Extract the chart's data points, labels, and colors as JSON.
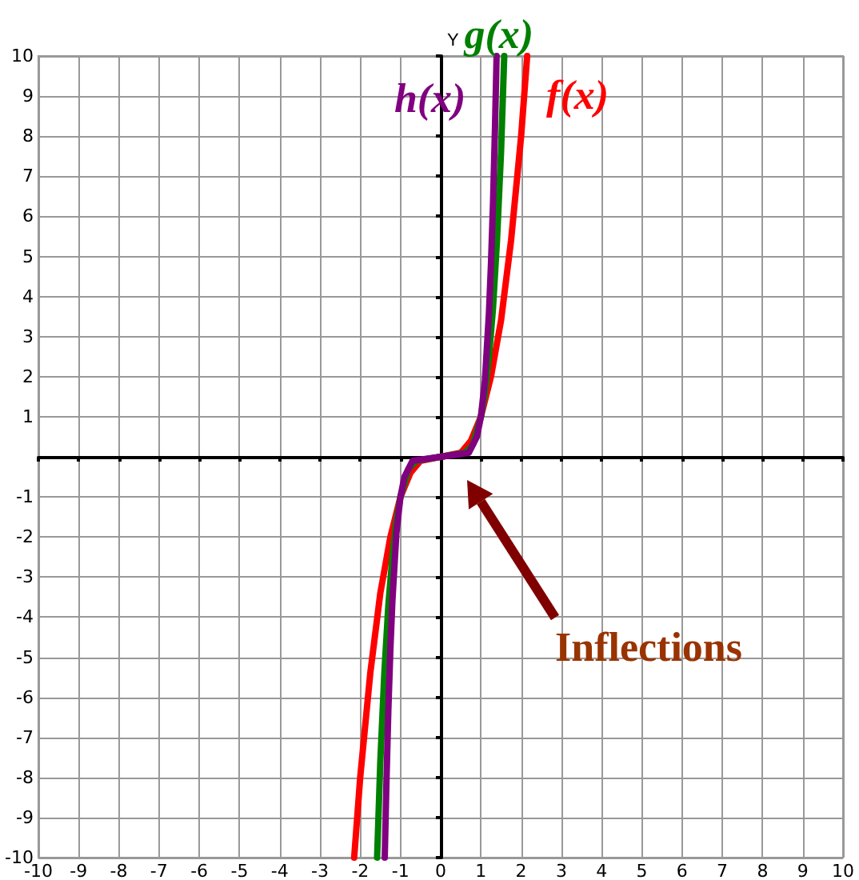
{
  "chart_data": {
    "type": "line",
    "ylabel": "Y",
    "xlim": [
      -10,
      10
    ],
    "ylim": [
      -10,
      10
    ],
    "xticks": [
      -10,
      -9,
      -8,
      -7,
      -6,
      -5,
      -4,
      -3,
      -2,
      -1,
      0,
      1,
      2,
      3,
      4,
      5,
      6,
      7,
      8,
      9,
      10
    ],
    "yticks": [
      -10,
      -9,
      -8,
      -7,
      -6,
      -5,
      -4,
      -3,
      -2,
      -1,
      {
        "value": 0,
        "label": null
      },
      1,
      2,
      3,
      4,
      5,
      6,
      7,
      8,
      9,
      10
    ],
    "grid": true,
    "legend": false,
    "marker": "none",
    "line_style": "solid",
    "series": [
      {
        "name": "f(x)",
        "color": "#ff0000",
        "x": [
          -2.15,
          -2,
          -1.75,
          -1.5,
          -1.25,
          -1,
          -0.75,
          -0.5,
          0,
          0.5,
          0.75,
          1,
          1.25,
          1.5,
          1.75,
          2,
          2.15
        ],
        "values": [
          -10,
          -8,
          -5.4,
          -3.4,
          -2,
          -1,
          -0.4,
          -0.1,
          0,
          0.1,
          0.4,
          1,
          2,
          3.4,
          5.4,
          8,
          10
        ]
      },
      {
        "name": "g(x)",
        "color": "#008000",
        "x": [
          -1.58,
          -1.5,
          -1.4,
          -1.3,
          -1.2,
          -1.1,
          -1,
          -0.8,
          -0.6,
          0,
          0.6,
          0.8,
          1,
          1.1,
          1.2,
          1.3,
          1.4,
          1.5,
          1.58
        ],
        "values": [
          -10,
          -7.6,
          -5.4,
          -3.7,
          -2.5,
          -1.6,
          -1,
          -0.3,
          -0.1,
          0,
          0.1,
          0.3,
          1,
          1.6,
          2.5,
          3.7,
          5.4,
          7.6,
          10
        ]
      },
      {
        "name": "h(x)",
        "color": "#800080",
        "x": [
          -1.39,
          -1.35,
          -1.3,
          -1.25,
          -1.2,
          -1.1,
          -1,
          -0.9,
          -0.7,
          0,
          0.7,
          0.9,
          1,
          1.1,
          1.2,
          1.25,
          1.3,
          1.35,
          1.39
        ],
        "values": [
          -10,
          -8.2,
          -6.3,
          -4.8,
          -3.6,
          -1.9,
          -1,
          -0.5,
          -0.1,
          0,
          0.1,
          0.5,
          1,
          1.9,
          3.6,
          4.8,
          6.3,
          8.2,
          10
        ]
      }
    ],
    "annotations": [
      "Inflections"
    ]
  }
}
